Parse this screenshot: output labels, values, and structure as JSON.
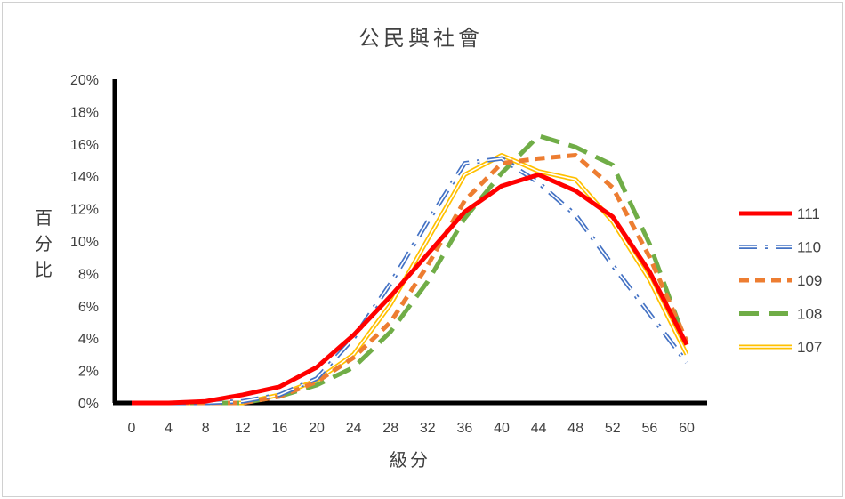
{
  "chart_data": {
    "type": "line",
    "title": "公民與社會",
    "xlabel": "級分",
    "ylabel": "百分比",
    "ylim": [
      0,
      20
    ],
    "yticks": [
      "0%",
      "2%",
      "4%",
      "6%",
      "8%",
      "10%",
      "12%",
      "14%",
      "16%",
      "18%",
      "20%"
    ],
    "categories": [
      "0",
      "4",
      "8",
      "12",
      "16",
      "20",
      "24",
      "28",
      "32",
      "36",
      "40",
      "44",
      "48",
      "52",
      "56",
      "60"
    ],
    "legend_position": "right",
    "series": [
      {
        "name": "111",
        "color": "#ff0000",
        "style": "solid-thick",
        "values": [
          0.0,
          0.0,
          0.1,
          0.5,
          1.0,
          2.2,
          4.2,
          6.6,
          9.2,
          11.8,
          13.4,
          14.1,
          13.1,
          11.5,
          8.1,
          3.6
        ]
      },
      {
        "name": "110",
        "color": "#4472c4",
        "style": "double-dashdot",
        "values": [
          0.0,
          0.0,
          0.0,
          0.1,
          0.5,
          1.5,
          4.0,
          7.4,
          11.2,
          14.8,
          15.1,
          13.6,
          11.6,
          8.5,
          5.5,
          2.5
        ]
      },
      {
        "name": "109",
        "color": "#ed7d31",
        "style": "dashed",
        "values": [
          0.0,
          0.0,
          0.0,
          0.0,
          0.4,
          1.3,
          2.8,
          5.0,
          8.5,
          12.5,
          14.8,
          15.1,
          15.3,
          13.3,
          9.0,
          3.8
        ]
      },
      {
        "name": "108",
        "color": "#70ad47",
        "style": "long-dash",
        "values": [
          0.0,
          0.0,
          0.0,
          0.0,
          0.4,
          1.1,
          2.2,
          4.4,
          7.5,
          11.4,
          14.2,
          16.5,
          15.8,
          14.7,
          9.8,
          3.6
        ]
      },
      {
        "name": "107",
        "color": "#ffc000",
        "style": "double",
        "values": [
          0.0,
          0.0,
          0.0,
          0.0,
          0.5,
          1.4,
          3.0,
          6.1,
          10.1,
          14.1,
          15.3,
          14.3,
          13.8,
          11.2,
          7.6,
          3.0
        ]
      }
    ]
  }
}
